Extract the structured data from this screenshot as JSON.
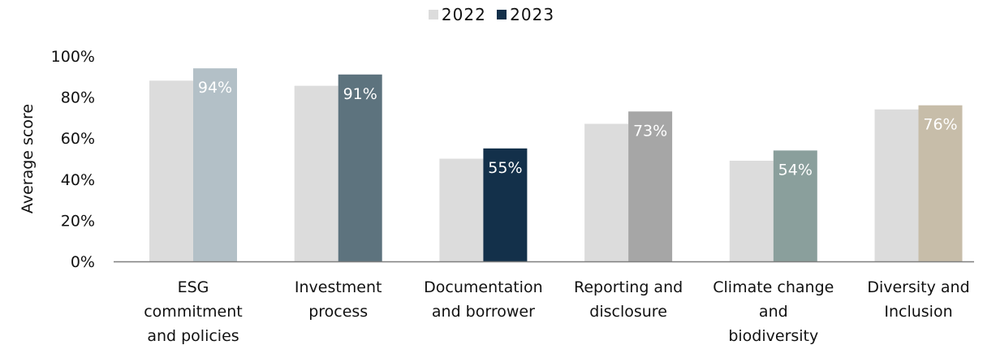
{
  "chart_data": {
    "type": "bar",
    "categories": [
      [
        "ESG",
        "commitment",
        "and policies"
      ],
      [
        "Investment",
        "process"
      ],
      [
        "Documentation",
        "and borrower"
      ],
      [
        "Reporting and",
        "disclosure"
      ],
      [
        "Climate change",
        "and",
        "biodiversity"
      ],
      [
        "Diversity and",
        "Inclusion"
      ]
    ],
    "series": [
      {
        "name": "2022",
        "values": [
          0.88,
          0.855,
          0.5,
          0.67,
          0.49,
          0.74
        ]
      },
      {
        "name": "2023",
        "values": [
          0.94,
          0.91,
          0.55,
          0.73,
          0.54,
          0.76
        ],
        "data_labels": [
          "94%",
          "91%",
          "55%",
          "73%",
          "54%",
          "76%"
        ]
      }
    ],
    "ylabel": "Average score",
    "ylim": [
      0,
      1
    ],
    "yticks": [
      "0%",
      "20%",
      "40%",
      "60%",
      "80%",
      "100%"
    ],
    "grid": false,
    "legend_position": "top-center"
  },
  "colors": {
    "series_2022": "#dcdcdc",
    "bars_2023": [
      "#b3c0c7",
      "#5d737e",
      "#13304a",
      "#a6a6a6",
      "#8a9f9c",
      "#c7bda9"
    ],
    "legend_2023": "#13304a",
    "axis": "#7f7f7f"
  }
}
